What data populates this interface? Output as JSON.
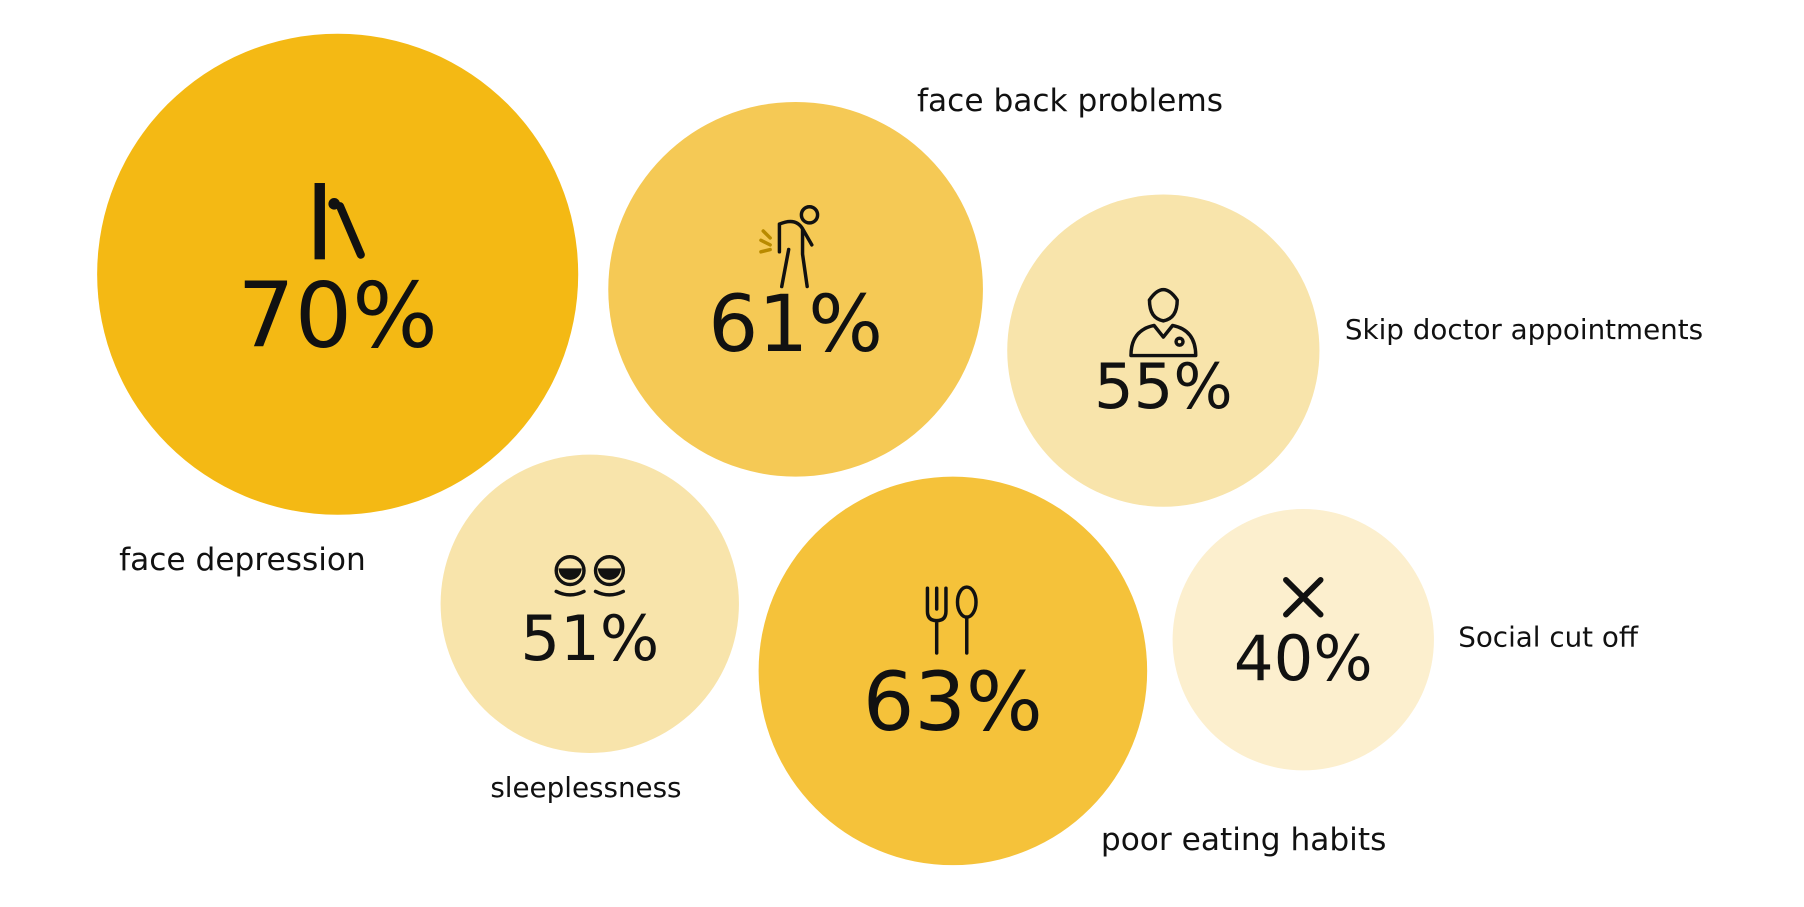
{
  "chart_data": {
    "type": "bubble",
    "categories": [
      "face depression",
      "face back problems",
      "Skip doctor appointments",
      "sleeplessness",
      "poor eating habits",
      "Social cut off"
    ],
    "values": [
      70,
      61,
      55,
      51,
      63,
      40
    ],
    "value_labels": [
      "70%",
      "61%",
      "55%",
      "51%",
      "63%",
      "40%"
    ],
    "colors": [
      "#f4b914",
      "#f5c955",
      "#f8e4ab",
      "#f8e4ab",
      "#f5c23a",
      "#fcefce"
    ]
  }
}
